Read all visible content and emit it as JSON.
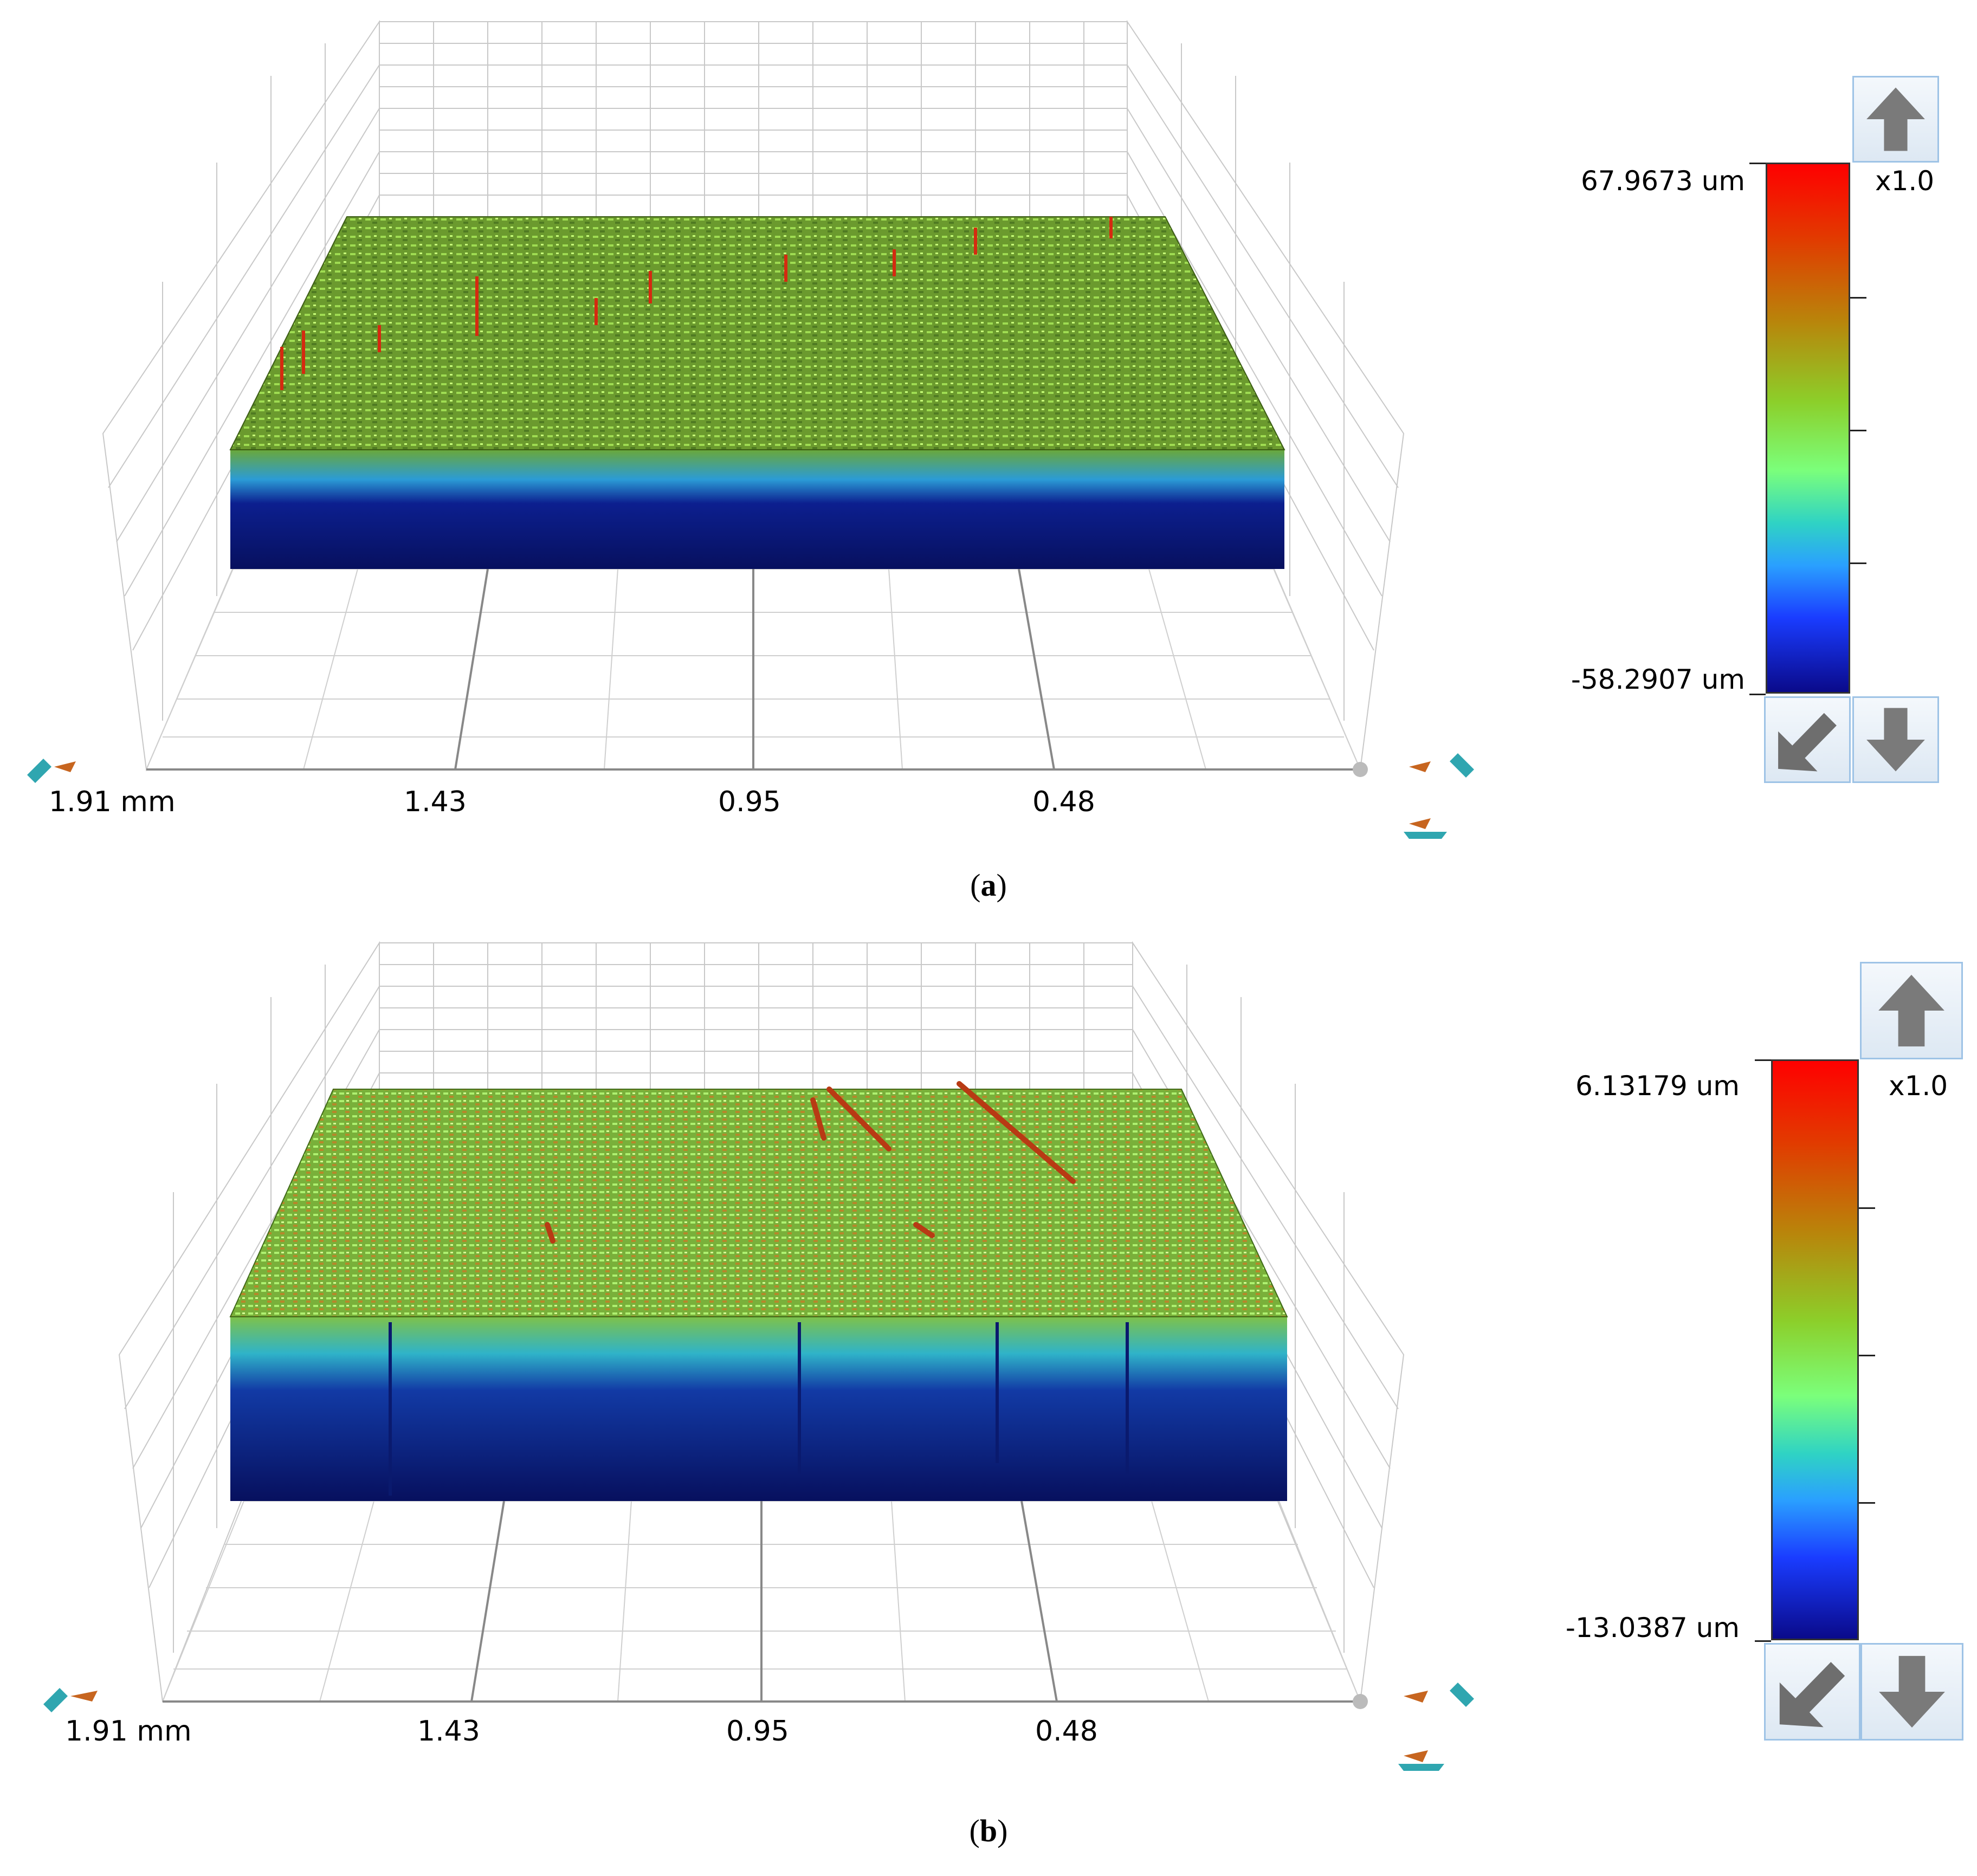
{
  "panels": [
    {
      "caption_letter": "a",
      "axis_ticks": [
        "1.91 mm",
        "1.43",
        "0.95",
        "0.48"
      ],
      "scale_max": "67.9673 um",
      "scale_min": "-58.2907 um",
      "zoom": "x1.0",
      "colors": {
        "high": "#ff0000",
        "mid": "#7bff7b",
        "low": "#0a0a8a"
      }
    },
    {
      "caption_letter": "b",
      "axis_ticks": [
        "1.91 mm",
        "1.43",
        "0.95",
        "0.48"
      ],
      "scale_max": "6.13179 um",
      "scale_min": "-13.0387 um",
      "zoom": "x1.0",
      "colors": {
        "high": "#ff0000",
        "mid": "#7bff7b",
        "low": "#0a0a8a"
      }
    }
  ],
  "icons": {
    "up": "arrow-up-icon",
    "down": "arrow-down-icon",
    "reset": "arrow-down-left-icon",
    "rotate": "rotate-view-icon"
  }
}
